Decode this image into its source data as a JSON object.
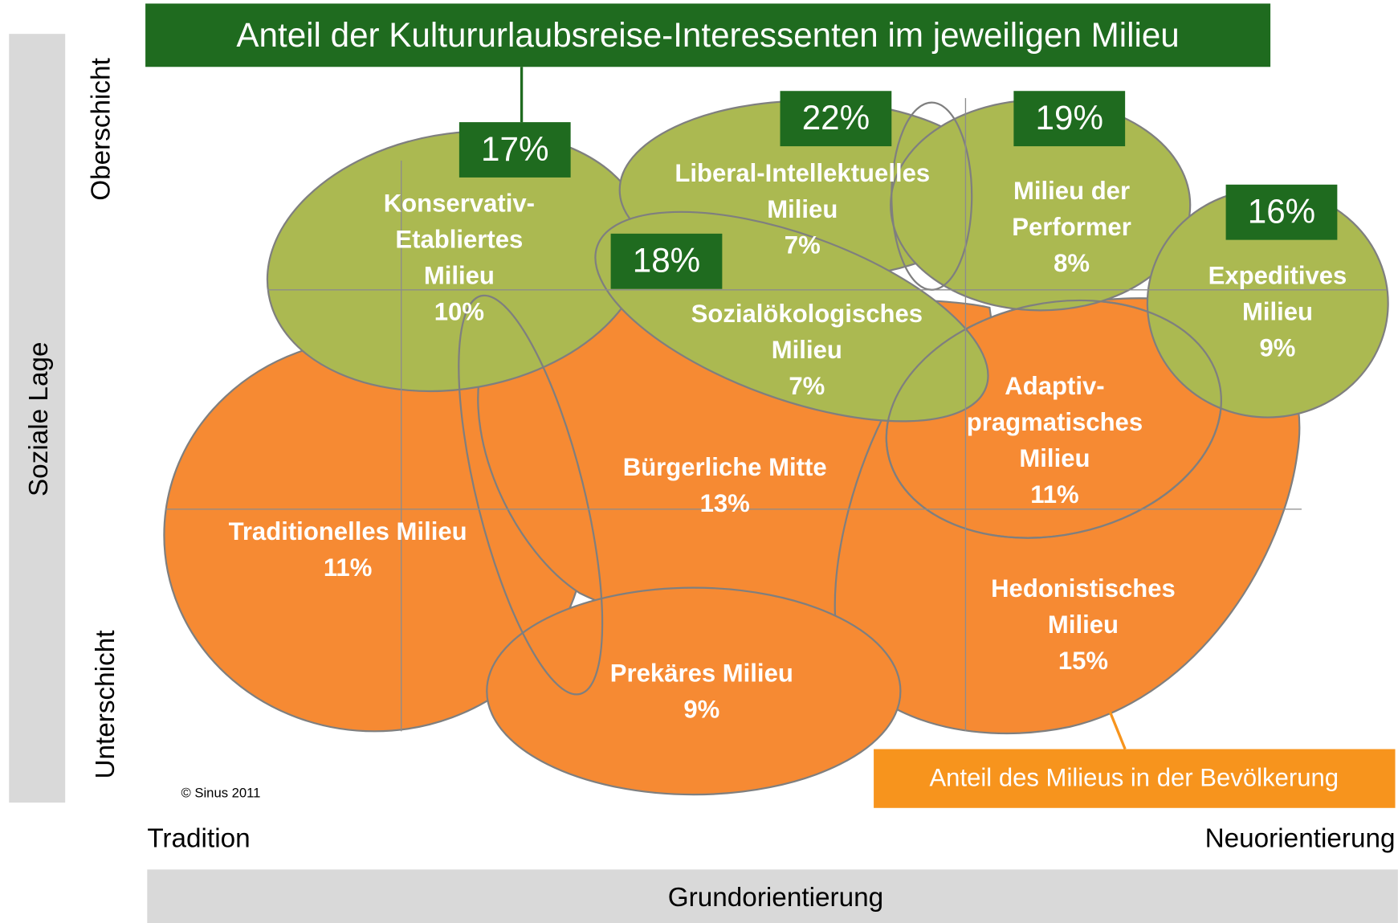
{
  "title": "Anteil der Kultururlaubsreise-Interessenten im jeweiligen Milieu",
  "legend_note": "Anteil des Milieus in der Bevölkerung",
  "y_axis": {
    "label": "Soziale Lage",
    "top": "Oberschicht",
    "bottom": "Unterschicht"
  },
  "x_axis": {
    "label": "Grundorientierung",
    "left": "Tradition",
    "right": "Neuorientierung"
  },
  "copyright": "© Sinus 2011",
  "milieus": [
    {
      "name": [
        "Traditionelles Milieu"
      ],
      "share": "11%"
    },
    {
      "name": [
        "Bürgerliche Mitte"
      ],
      "share": "13%"
    },
    {
      "name": [
        "Prekäres Milieu"
      ],
      "share": "9%"
    },
    {
      "name": [
        "Hedonistisches",
        "Milieu"
      ],
      "share": "15%"
    },
    {
      "name": [
        "Adaptiv-",
        "pragmatisches",
        "Milieu"
      ],
      "share": "11%"
    },
    {
      "name": [
        "Konservativ-",
        "Etabliertes",
        "Milieu"
      ],
      "share": "10%",
      "interest": "17%"
    },
    {
      "name": [
        "Liberal-Intellektuelles",
        "Milieu"
      ],
      "share": "7%",
      "interest": "22%"
    },
    {
      "name": [
        "Milieu der",
        "Performer"
      ],
      "share": "8%",
      "interest": "19%"
    },
    {
      "name": [
        "Expeditives",
        "Milieu"
      ],
      "share": "9%",
      "interest": "16%"
    },
    {
      "name": [
        "Sozialökologisches",
        "Milieu"
      ],
      "share": "7%",
      "interest": "18%"
    }
  ]
}
